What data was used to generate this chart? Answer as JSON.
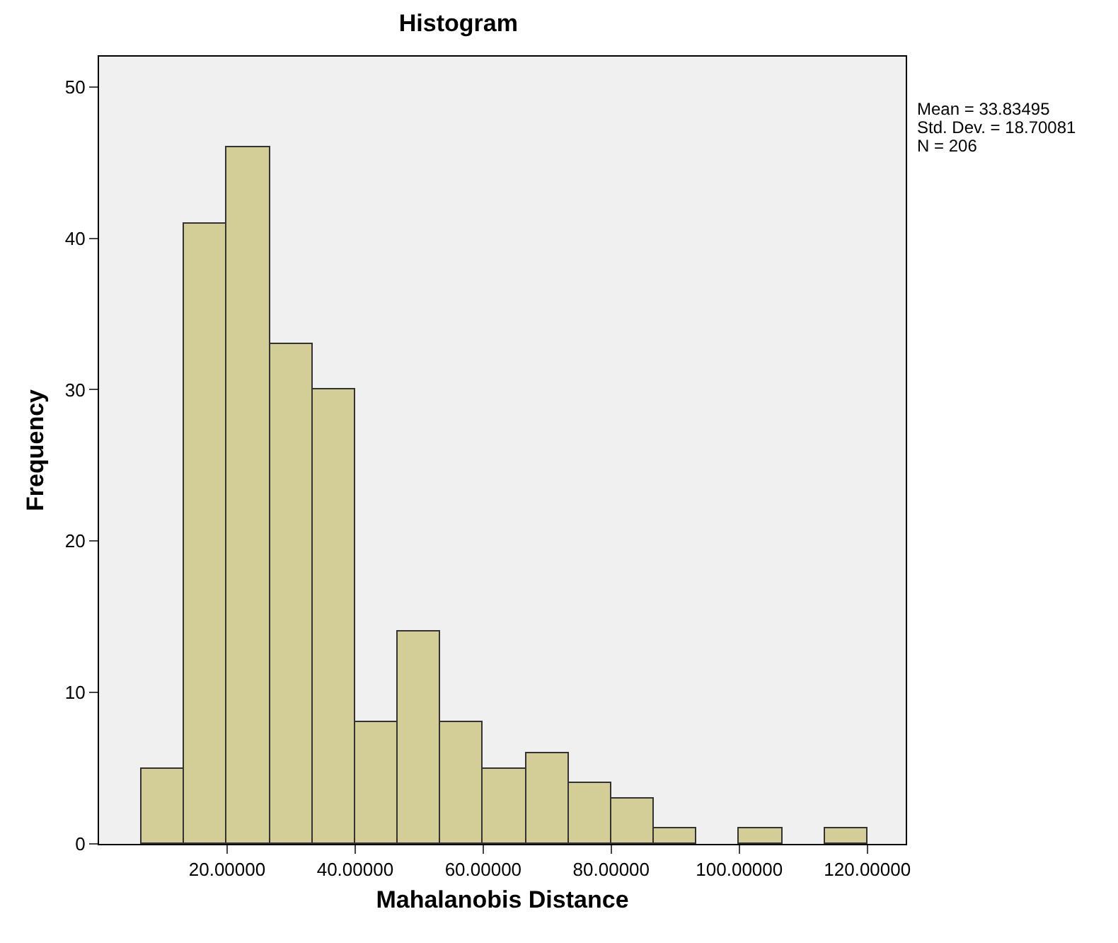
{
  "chart_data": {
    "type": "histogram",
    "title": "Histogram",
    "xlabel": "Mahalanobis Distance",
    "ylabel": "Frequency",
    "bins": [
      6.67,
      13.33,
      20,
      26.67,
      33.33,
      40,
      46.67,
      53.33,
      60,
      66.67,
      73.33,
      80,
      86.67,
      93.33,
      100,
      106.67,
      113.33,
      120
    ],
    "values": [
      5,
      41,
      46,
      33,
      30,
      8,
      14,
      8,
      5,
      6,
      4,
      3,
      1,
      0,
      1,
      0,
      1
    ],
    "color": "#d3ce97",
    "xlim": [
      0,
      126
    ],
    "ylim": [
      0,
      52
    ],
    "xticks": [
      {
        "value": 20,
        "label": "20.00000"
      },
      {
        "value": 40,
        "label": "40.00000"
      },
      {
        "value": 60,
        "label": "60.00000"
      },
      {
        "value": 80,
        "label": "80.00000"
      },
      {
        "value": 100,
        "label": "100.00000"
      },
      {
        "value": 120,
        "label": "120.00000"
      }
    ],
    "yticks": [
      0,
      10,
      20,
      30,
      40,
      50
    ],
    "annotations": [
      "Mean = 33.83495",
      "Std. Dev. = 18.70081",
      "N = 206"
    ]
  }
}
